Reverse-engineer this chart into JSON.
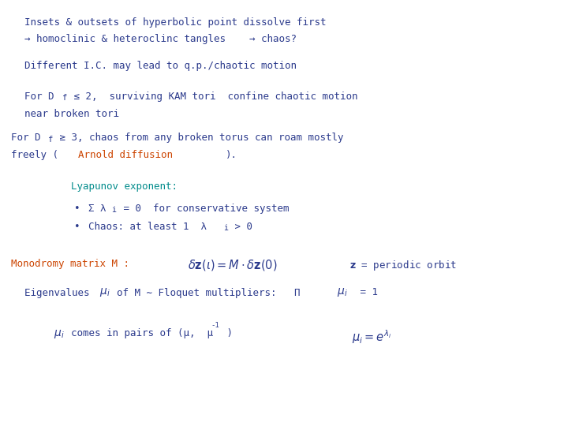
{
  "bg_color": "#ffffff",
  "blue": "#2B3A8C",
  "teal": "#008B8B",
  "orange": "#CC4400",
  "fig_w": 7.2,
  "fig_h": 5.4,
  "dpi": 100,
  "fs": 9.0,
  "fs_math": 10.0
}
